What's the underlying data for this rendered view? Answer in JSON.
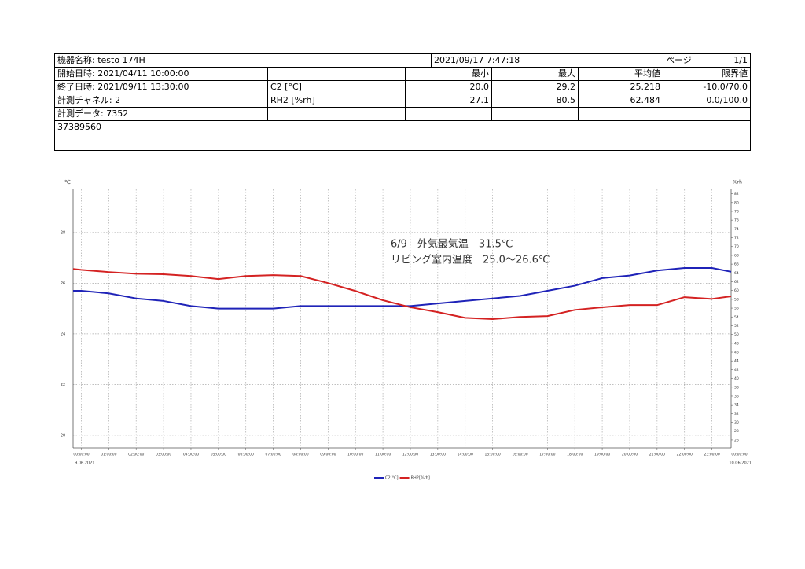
{
  "table": {
    "rows": [
      [
        "機器名称: testo 174H",
        "2021/09/17 7:47:18",
        "ページ",
        "1/1"
      ],
      [
        "開始日時: 2021/04/11 10:00:00",
        "最小",
        "最大",
        "平均値",
        "限界値"
      ],
      [
        "終了日時: 2021/09/11 13:30:00",
        "C2 [°C]",
        "20.0",
        "29.2",
        "25.218",
        "-10.0/70.0"
      ],
      [
        "計測チャネル: 2",
        "RH2 [%rh]",
        "27.1",
        "80.5",
        "62.484",
        "0.0/100.0"
      ],
      [
        "計測データ: 7352"
      ],
      [
        "37389560"
      ]
    ]
  },
  "chart_data": {
    "type": "line",
    "y_label": "℃",
    "y2_label": "%rh",
    "x_date_labels": [
      "9.06.2021",
      "10.06.2021"
    ],
    "annotations": [
      "6/9　外気最気温　31.5℃",
      "リビング室内温度　25.0～26.6℃"
    ],
    "x": [
      -0.3,
      0,
      1,
      2,
      3,
      4,
      5,
      6,
      7,
      8,
      9,
      10,
      11,
      12,
      13,
      14,
      15,
      16,
      17,
      18,
      19,
      20,
      21,
      22,
      23,
      23.7
    ],
    "series": [
      {
        "name": "C2[°C]",
        "color": "#1f23b8",
        "values": [
          25.7,
          25.7,
          25.6,
          25.4,
          25.3,
          25.1,
          25.0,
          25.0,
          25.0,
          25.1,
          25.1,
          25.1,
          25.1,
          25.1,
          25.2,
          25.3,
          25.4,
          25.5,
          25.7,
          25.9,
          26.2,
          26.3,
          26.5,
          26.6,
          26.6,
          26.45
        ]
      },
      {
        "name": "RH2[%rh]",
        "color": "#d42222",
        "axis": "y2",
        "values": [
          64.9,
          64.7,
          64.2,
          63.8,
          63.7,
          63.3,
          62.6,
          63.3,
          63.5,
          63.3,
          61.7,
          59.9,
          57.8,
          56.2,
          55.1,
          53.8,
          53.5,
          54.0,
          54.2,
          55.6,
          56.2,
          56.7,
          56.7,
          58.5,
          58.1,
          58.7
        ]
      }
    ],
    "xlim": [
      -0.3,
      23.7
    ],
    "xticks": [
      {
        "value": 0,
        "label": "00:00:00"
      },
      {
        "value": 1,
        "label": "01:00:00"
      },
      {
        "value": 2,
        "label": "02:00:00"
      },
      {
        "value": 3,
        "label": "03:00:00"
      },
      {
        "value": 4,
        "label": "04:00:00"
      },
      {
        "value": 5,
        "label": "05:00:00"
      },
      {
        "value": 6,
        "label": "06:00:00"
      },
      {
        "value": 7,
        "label": "07:00:00"
      },
      {
        "value": 8,
        "label": "08:00:00"
      },
      {
        "value": 9,
        "label": "09:00:00"
      },
      {
        "value": 10,
        "label": "10:00:00"
      },
      {
        "value": 11,
        "label": "11:00:00"
      },
      {
        "value": 12,
        "label": "12:00:00"
      },
      {
        "value": 13,
        "label": "13:00:00"
      },
      {
        "value": 14,
        "label": "14:00:00"
      },
      {
        "value": 15,
        "label": "15:00:00"
      },
      {
        "value": 16,
        "label": "16:00:00"
      },
      {
        "value": 17,
        "label": "17:00:00"
      },
      {
        "value": 18,
        "label": "18:00:00"
      },
      {
        "value": 19,
        "label": "19:00:00"
      },
      {
        "value": 20,
        "label": "20:00:00"
      },
      {
        "value": 21,
        "label": "21:00:00"
      },
      {
        "value": 22,
        "label": "22:00:00"
      },
      {
        "value": 23,
        "label": "23:00:00"
      },
      {
        "value": 24,
        "label": "00:00:00"
      }
    ],
    "ylim": [
      19.5,
      29.7
    ],
    "yticks": [
      20,
      22,
      24,
      26,
      28
    ],
    "y2lim": [
      24.2,
      83.0
    ],
    "y2ticks": [
      26,
      28,
      30,
      32,
      34,
      36,
      38,
      40,
      42,
      44,
      46,
      48,
      50,
      52,
      54,
      56,
      58,
      60,
      62,
      64,
      66,
      68,
      70,
      72,
      74,
      76,
      78,
      80,
      82
    ],
    "grid": true,
    "legend": "bottom"
  }
}
